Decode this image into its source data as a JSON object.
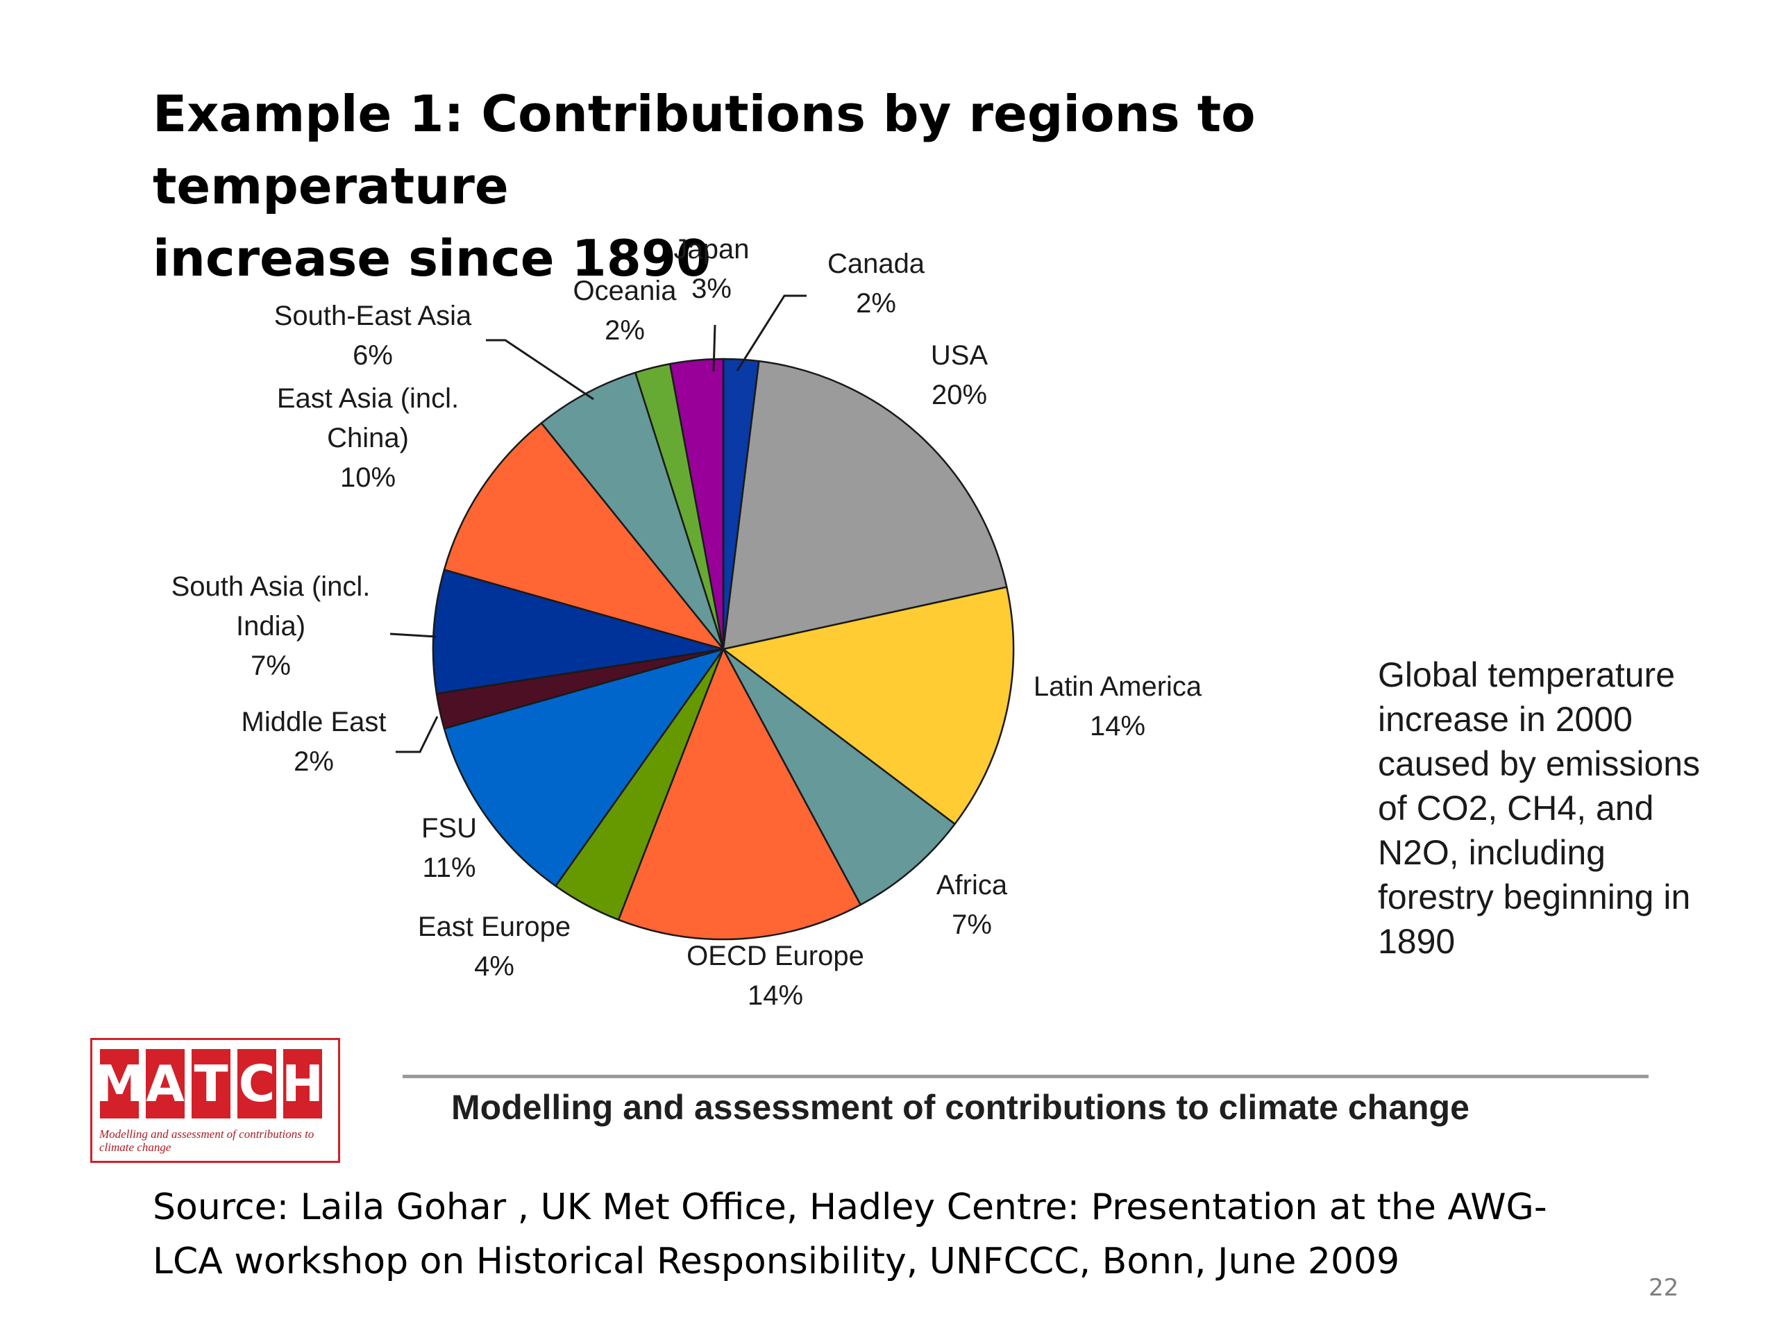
{
  "slide": {
    "title_line1": "Example 1: Contributions by regions to temperature",
    "title_line2": "increase since 1890",
    "side_note": "Global temperature increase in 2000 caused by emissions of CO2, CH4, and N2O, including forestry beginning in 1890",
    "logo_text": "MATCH",
    "logo_tagline": "Modelling and assessment of contributions to climate change",
    "footer_caption": "Modelling and assessment of contributions to climate change",
    "source_line1": "Source: Laila Gohar , UK Met Office,  Hadley Centre: Presentation at the AWG-",
    "source_line2": "LCA workshop on Historical Responsibility, UNFCCC, Bonn, June 2009",
    "page_number": "22"
  },
  "chart_data": {
    "type": "pie",
    "title": "",
    "unit": "%",
    "series": [
      {
        "name": "Canada",
        "label_lines": [
          "Canada",
          "2%"
        ],
        "value": 2,
        "color": "#0a3aa6"
      },
      {
        "name": "USA",
        "label_lines": [
          "USA",
          "20%"
        ],
        "value": 20,
        "color": "#9b9b9b"
      },
      {
        "name": "Latin America",
        "label_lines": [
          "Latin America",
          "14%"
        ],
        "value": 14,
        "color": "#ffcc33"
      },
      {
        "name": "Africa",
        "label_lines": [
          "Africa",
          "7%"
        ],
        "value": 7,
        "color": "#669999"
      },
      {
        "name": "OECD Europe",
        "label_lines": [
          "OECD Europe",
          "14%"
        ],
        "value": 14,
        "color": "#ff6633"
      },
      {
        "name": "East Europe",
        "label_lines": [
          "East Europe",
          "4%"
        ],
        "value": 4,
        "color": "#669900"
      },
      {
        "name": "FSU",
        "label_lines": [
          "FSU",
          "11%"
        ],
        "value": 11,
        "color": "#0066cc"
      },
      {
        "name": "Middle East",
        "label_lines": [
          "Middle East",
          "2%"
        ],
        "value": 2,
        "color": "#4d0f24"
      },
      {
        "name": "South Asia (incl. India)",
        "label_lines": [
          "South Asia (incl.",
          "India)",
          "7%"
        ],
        "value": 7,
        "color": "#003399"
      },
      {
        "name": "East Asia (incl. China)",
        "label_lines": [
          "East Asia (incl.",
          "China)",
          "10%"
        ],
        "value": 10,
        "color": "#ff6633"
      },
      {
        "name": "South-East Asia",
        "label_lines": [
          "South-East Asia",
          "6%"
        ],
        "value": 6,
        "color": "#669999"
      },
      {
        "name": "Oceania",
        "label_lines": [
          "Oceania",
          "2%"
        ],
        "value": 2,
        "color": "#66aa33"
      },
      {
        "name": "Japan",
        "label_lines": [
          "Japan",
          "3%"
        ],
        "value": 3,
        "color": "#990099"
      }
    ]
  }
}
